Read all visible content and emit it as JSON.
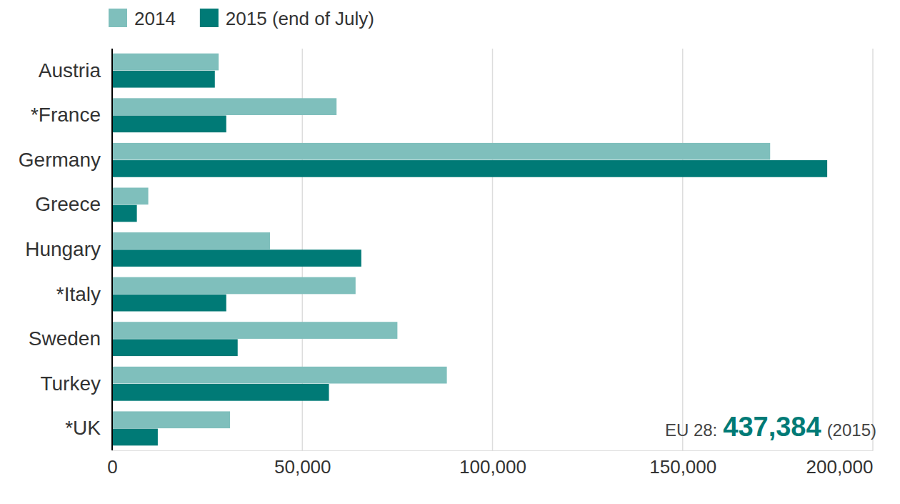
{
  "chart_data": {
    "type": "bar",
    "orientation": "horizontal",
    "categories": [
      "Austria",
      "*France",
      "Germany",
      "Greece",
      "Hungary",
      "*Italy",
      "Sweden",
      "Turkey",
      "*UK"
    ],
    "series": [
      {
        "name": "2014",
        "color": "#7fbfbc",
        "values": [
          28000,
          59000,
          173000,
          9500,
          41500,
          64000,
          75000,
          88000,
          31000
        ]
      },
      {
        "name": "2015 (end of July)",
        "color": "#007a76",
        "values": [
          27000,
          30000,
          188000,
          6500,
          65500,
          30000,
          33000,
          57000,
          12000
        ]
      }
    ],
    "xlim": [
      0,
      200000
    ],
    "xticks": [
      0,
      {
        "value": 50000,
        "label": "50,000"
      },
      {
        "value": 100000,
        "label": "100,000"
      },
      {
        "value": 150000,
        "label": "150,000"
      },
      {
        "value": 200000,
        "label": "200,000"
      }
    ],
    "grid": true,
    "legend": "top-left",
    "annotation": {
      "prefix": "EU 28:",
      "value": 437384,
      "label": "437,384",
      "suffix": "(2015)"
    }
  }
}
